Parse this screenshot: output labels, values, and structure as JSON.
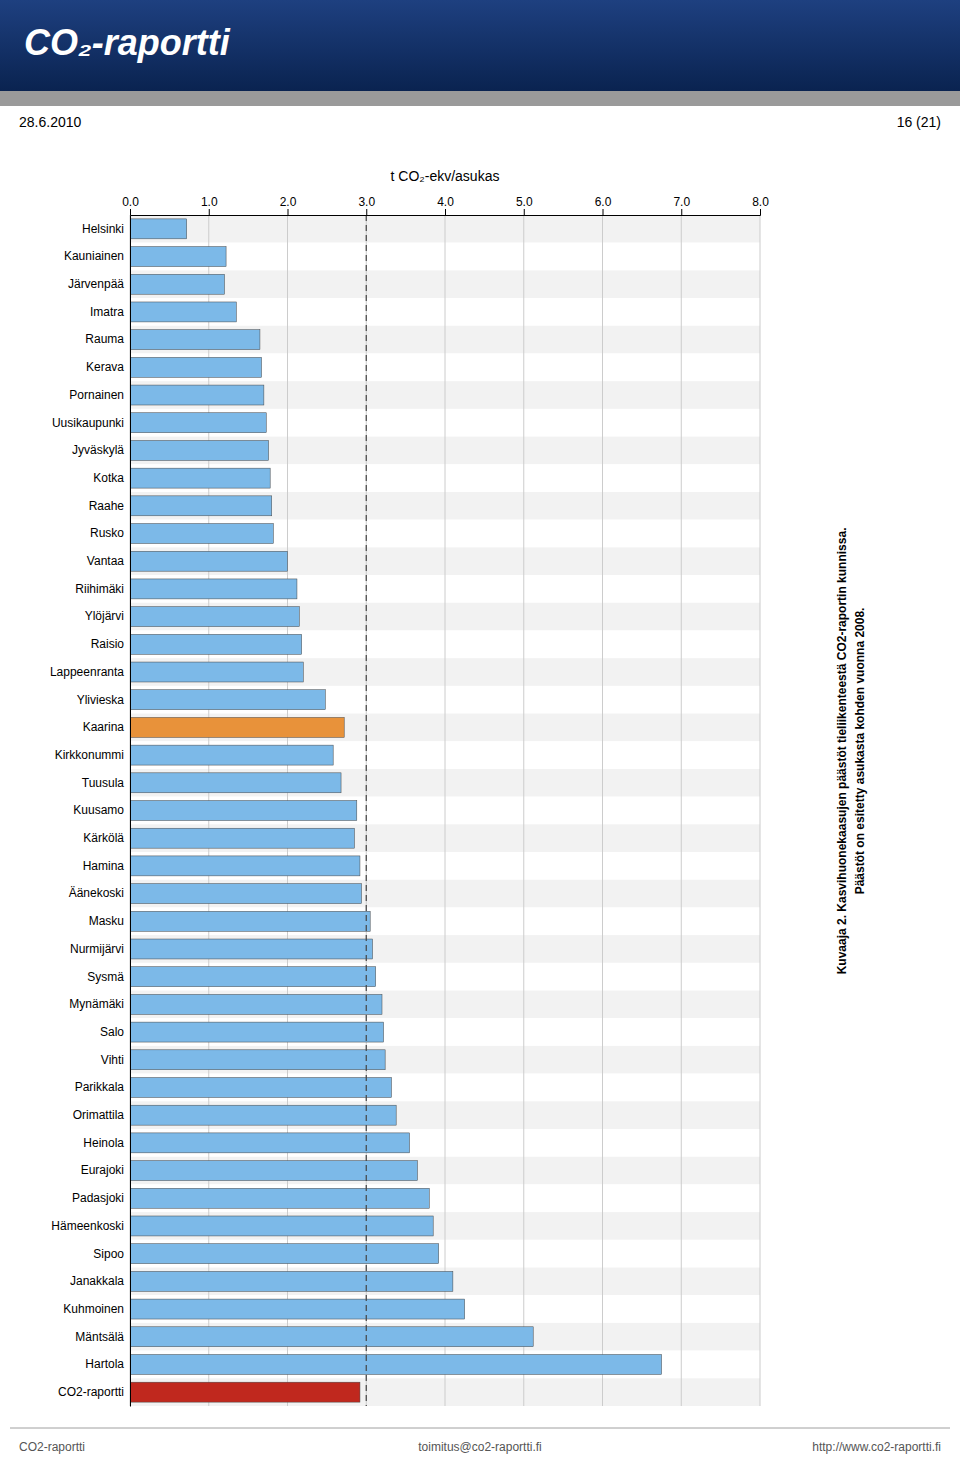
{
  "chart_data": {
    "type": "bar",
    "orientation": "horizontal",
    "title": "CO₂-raportti",
    "annotations": [
      "28.6.2010",
      "16 (21)",
      "Kuvaaja 2. Kasvihuonekaasujen päästöt tieliikenteestä CO2-raportin kunnissa.",
      "Päästöt on esitetty asukasta kohden vuonna 2008.",
      "CO2-raportti",
      "toimitus@co2-raportti.fi",
      "http://www.co2-raportti.fi"
    ],
    "xlabel": "t CO₂-ekv/asukas",
    "categories": [
      "Helsinki",
      "Kauniainen",
      "Järvenpää",
      "Imatra",
      "Rauma",
      "Kerava",
      "Pornainen",
      "Uusikaupunki",
      "Jyväskylä",
      "Kotka",
      "Raahe",
      "Rusko",
      "Vantaa",
      "Riihimäki",
      "Ylöjärvi",
      "Raisio",
      "Lappeenranta",
      "Ylivieska",
      "Kaarina",
      "Kirkkonummi",
      "Tuusula",
      "Kuusamo",
      "Kärkölä",
      "Hamina",
      "Äänekoski",
      "Masku",
      "Nurmijärvi",
      "Sysmä",
      "Mynämäki",
      "Salo",
      "Vihti",
      "Parikkala",
      "Orimattila",
      "Heinola",
      "Eurajoki",
      "Padasjoki",
      "Hämeenkoski",
      "Sipoo",
      "Janakkala",
      "Kuhmoinen",
      "Mäntsälä",
      "Hartola",
      "CO2-raportti"
    ],
    "values": [
      0.72,
      1.22,
      1.2,
      1.35,
      1.65,
      1.67,
      1.7,
      1.73,
      1.76,
      1.78,
      1.8,
      1.82,
      2.0,
      2.12,
      2.15,
      2.18,
      2.2,
      2.48,
      2.72,
      2.58,
      2.68,
      2.88,
      2.85,
      2.92,
      2.94,
      3.05,
      3.08,
      3.12,
      3.2,
      3.22,
      3.24,
      3.32,
      3.38,
      3.55,
      3.65,
      3.8,
      3.85,
      3.92,
      4.1,
      4.25,
      5.12,
      6.75,
      2.92
    ],
    "colors": [
      "#7CB9E8",
      "#7CB9E8",
      "#7CB9E8",
      "#7CB9E8",
      "#7CB9E8",
      "#7CB9E8",
      "#7CB9E8",
      "#7CB9E8",
      "#7CB9E8",
      "#7CB9E8",
      "#7CB9E8",
      "#7CB9E8",
      "#7CB9E8",
      "#7CB9E8",
      "#7CB9E8",
      "#7CB9E8",
      "#7CB9E8",
      "#7CB9E8",
      "#E8923A",
      "#7CB9E8",
      "#7CB9E8",
      "#7CB9E8",
      "#7CB9E8",
      "#7CB9E8",
      "#7CB9E8",
      "#7CB9E8",
      "#7CB9E8",
      "#7CB9E8",
      "#7CB9E8",
      "#7CB9E8",
      "#7CB9E8",
      "#7CB9E8",
      "#7CB9E8",
      "#7CB9E8",
      "#7CB9E8",
      "#7CB9E8",
      "#7CB9E8",
      "#7CB9E8",
      "#7CB9E8",
      "#7CB9E8",
      "#7CB9E8",
      "#7CB9E8",
      "#C0281E"
    ],
    "xlim": [
      0,
      8.0
    ],
    "xticks": [
      {
        "value": 0.0,
        "label": "0.0"
      },
      {
        "value": 1.0,
        "label": "1.0"
      },
      {
        "value": 2.0,
        "label": "2.0"
      },
      {
        "value": 3.0,
        "label": "3.0"
      },
      {
        "value": 4.0,
        "label": "4.0"
      },
      {
        "value": 5.0,
        "label": "5.0"
      },
      {
        "value": 6.0,
        "label": "6.0"
      },
      {
        "value": 7.0,
        "label": "7.0"
      },
      {
        "value": 8.0,
        "label": "8.0"
      }
    ],
    "reference_line": 3.0,
    "grid": true
  }
}
